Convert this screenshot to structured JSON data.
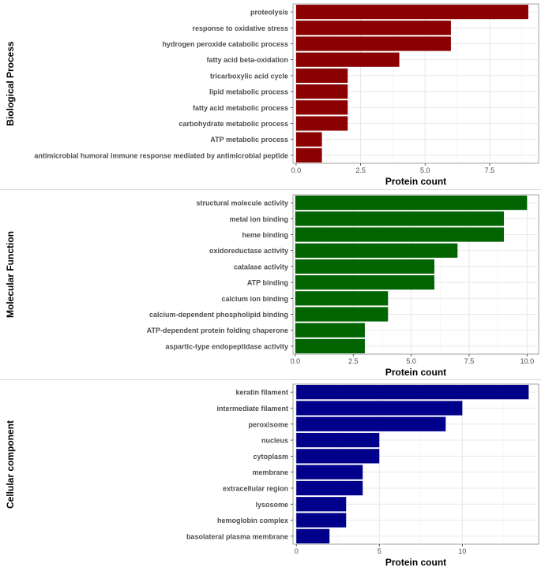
{
  "chart_data": [
    {
      "type": "bar",
      "orientation": "horizontal",
      "facet_label": "Biological Process",
      "xlabel": "Protein count",
      "categories": [
        "proteolysis",
        "response to oxidative stress",
        "hydrogen peroxide catabolic process",
        "fatty acid beta-oxidation",
        "tricarboxylic acid cycle",
        "lipid metabolic process",
        "fatty acid metabolic process",
        "carbohydrate metabolic process",
        "ATP metabolic process",
        "antimicrobial humoral immune response mediated by antimicrobial peptide"
      ],
      "values": [
        9,
        6,
        6,
        4,
        2,
        2,
        2,
        2,
        1,
        1
      ],
      "xlim": [
        -0.12,
        9.4
      ],
      "ticks": [
        0,
        2.5,
        5,
        7.5
      ],
      "tick_labels": [
        "0.0",
        "2.5",
        "5.0",
        "7.5"
      ],
      "color": "#8b0000",
      "grid": true
    },
    {
      "type": "bar",
      "orientation": "horizontal",
      "facet_label": "Molecular Function",
      "xlabel": "Protein count",
      "categories": [
        "structural molecule activity",
        "metal ion binding",
        "heme binding",
        "oxidoreductase activity",
        "catalase activity",
        "ATP binding",
        "calcium ion binding",
        "calcium-dependent phospholipid binding",
        "ATP-dependent protein folding chaperone",
        "aspartic-type endopeptidase activity"
      ],
      "values": [
        10,
        9,
        9,
        7,
        6,
        6,
        4,
        4,
        3,
        3
      ],
      "xlim": [
        -0.1,
        10.5
      ],
      "ticks": [
        0,
        2.5,
        5,
        7.5,
        10
      ],
      "tick_labels": [
        "0.0",
        "2.5",
        "5.0",
        "7.5",
        "10.0"
      ],
      "color": "#006400",
      "grid": true
    },
    {
      "type": "bar",
      "orientation": "horizontal",
      "facet_label": "Cellular component",
      "xlabel": "Protein count",
      "categories": [
        "keratin filament",
        "intermediate filament",
        "peroxisome",
        "nucleus",
        "cytoplasm",
        "membrane",
        "extracellular region",
        "lysosome",
        "hemoglobin complex",
        "basolateral plasma membrane"
      ],
      "values": [
        14,
        10,
        9,
        5,
        5,
        4,
        4,
        3,
        3,
        2
      ],
      "xlim": [
        -0.2,
        14.6
      ],
      "ticks": [
        0,
        5,
        10
      ],
      "tick_labels": [
        "0",
        "5",
        "10"
      ],
      "color": "#00008b",
      "grid": true
    }
  ]
}
